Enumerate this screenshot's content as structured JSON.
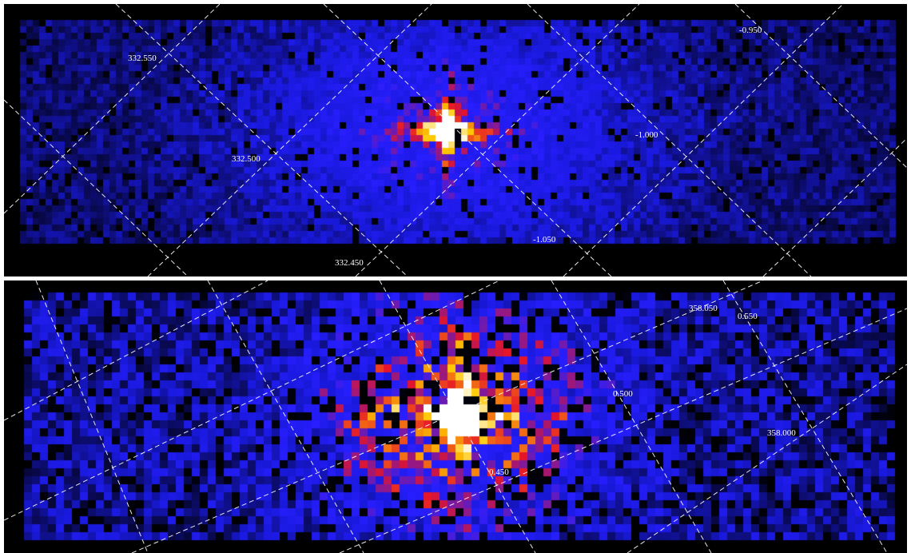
{
  "panels": [
    {
      "id": "top",
      "labels": {
        "ra_1": "332.550",
        "ra_2": "332.500",
        "ra_3": "332.450",
        "dec_1": "-0.950",
        "dec_2": "-1.000",
        "dec_3": "-1.050"
      }
    },
    {
      "id": "bottom",
      "labels": {
        "l_1": "358.050",
        "l_2": "358.000",
        "b_1": "0.550",
        "b_2": "0.500",
        "b_3": "0.450"
      }
    }
  ],
  "colors": {
    "background": "#000000",
    "separator": "#ffffff",
    "grid": "#ffffff",
    "colormap_low": "#0a0a60",
    "colormap_mid": "#1a1aff",
    "colormap_high": "#ff2000",
    "colormap_peak": "#ffffff"
  }
}
